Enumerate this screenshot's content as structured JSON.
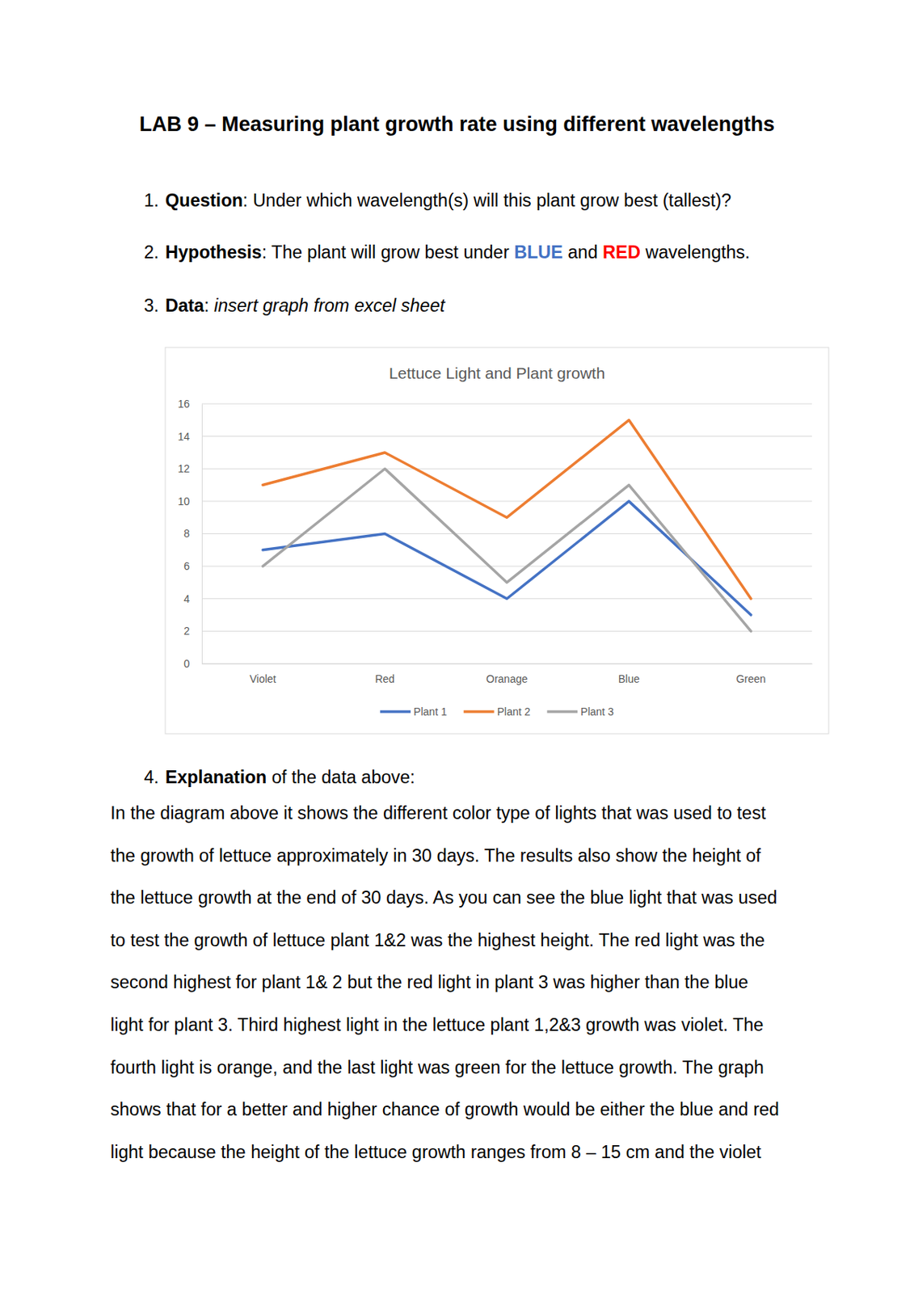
{
  "title": "LAB 9 – Measuring plant growth rate using different wavelengths",
  "items": [
    {
      "number": "1.",
      "segments": [
        {
          "text": "Question",
          "bold": true
        },
        {
          "text": ": Under which wavelength(s) will this plant grow best (tallest)?"
        }
      ]
    },
    {
      "number": "2.",
      "segments": [
        {
          "text": "Hypothesis",
          "bold": true
        },
        {
          "text": ": The plant will grow best under "
        },
        {
          "text": "BLUE",
          "bold": true,
          "color": "#4472c4"
        },
        {
          "text": " and "
        },
        {
          "text": "RED",
          "bold": true,
          "color": "#ff0000"
        },
        {
          "text": " wavelengths."
        }
      ]
    },
    {
      "number": "3.",
      "segments": [
        {
          "text": "Data",
          "bold": true
        },
        {
          "text": ": "
        },
        {
          "text": "insert graph from excel sheet",
          "italic": true
        }
      ]
    }
  ],
  "chart_data": {
    "type": "line",
    "title": "Lettuce Light and Plant growth",
    "categories": [
      "Violet",
      "Red",
      "Oranage",
      "Blue",
      "Green"
    ],
    "series": [
      {
        "name": "Plant 1",
        "color": "#4472c4",
        "values": [
          7,
          8,
          4,
          10,
          3
        ]
      },
      {
        "name": "Plant 2",
        "color": "#ed7d31",
        "values": [
          11,
          13,
          9,
          15,
          4
        ]
      },
      {
        "name": "Plant 3",
        "color": "#a5a5a5",
        "values": [
          6,
          12,
          5,
          11,
          2
        ]
      }
    ],
    "ylim": [
      0,
      16
    ],
    "yticks": [
      0,
      2,
      4,
      6,
      8,
      10,
      12,
      14,
      16
    ],
    "grid": true,
    "legend": "bottom"
  },
  "explanation": {
    "number": "4.",
    "segments": [
      {
        "text": "Explanation",
        "bold": true
      },
      {
        "text": " of the data above:"
      }
    ],
    "lines": [
      "In the diagram above it shows the different color type of lights that was used to test",
      "the growth of lettuce approximately in 30 days. The results also show the height of",
      "the lettuce growth at the end of 30 days. As you can see the blue light that was used",
      "to test the growth of lettuce plant 1&2 was the highest height. The red light was the",
      "second highest for plant 1& 2 but the red light in plant 3 was higher than the blue",
      "light for plant 3. Third highest light in the lettuce plant 1,2&3 growth was violet. The",
      "fourth light is orange, and the last light was green for the lettuce growth. The graph",
      "shows that for a better and higher chance of growth would be either the blue and red",
      "light because the height of the lettuce growth ranges from 8 – 15 cm and the violet"
    ]
  }
}
